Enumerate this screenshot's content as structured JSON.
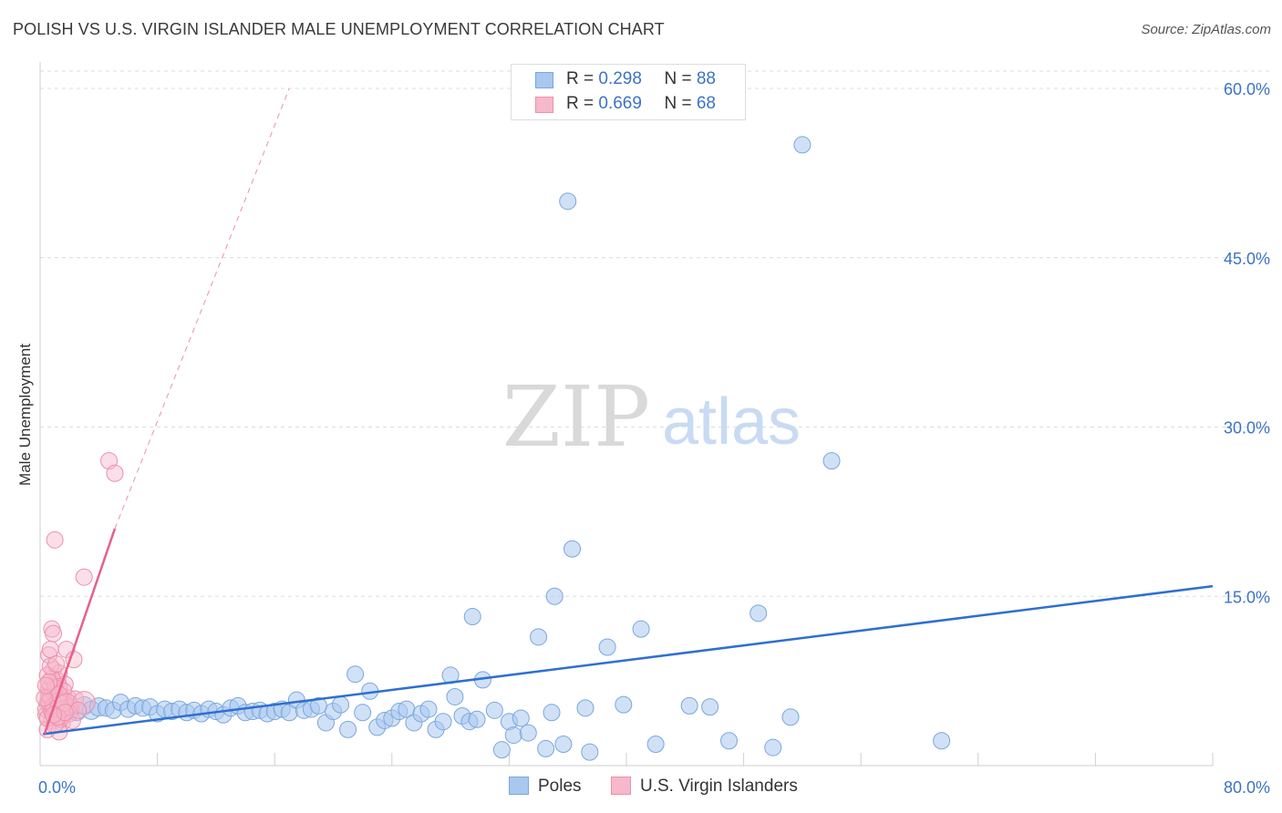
{
  "title": "POLISH VS U.S. VIRGIN ISLANDER MALE UNEMPLOYMENT CORRELATION CHART",
  "source": "Source: ZipAtlas.com",
  "colors": {
    "blue_fill": "#a9c8ef",
    "blue_stroke": "#7aa6df",
    "blue_line": "#2f6fd0",
    "pink_fill": "#f7b8cb",
    "pink_stroke": "#ee8fab",
    "pink_line": "#e7608c",
    "axis_text": "#3b73c8",
    "grid": "#dcdcdc"
  },
  "legend": {
    "rows": [
      {
        "r_label": "R = ",
        "r_value": "0.298",
        "n_label": "N = ",
        "n_value": "88"
      },
      {
        "r_label": "R = ",
        "r_value": "0.669",
        "n_label": "N = ",
        "n_value": "68"
      }
    ]
  },
  "bottom_legend": [
    "Poles",
    "U.S. Virgin Islanders"
  ],
  "chart_data": {
    "type": "scatter",
    "title": "POLISH VS U.S. VIRGIN ISLANDER MALE UNEMPLOYMENT CORRELATION CHART",
    "xlabel": "",
    "ylabel": "Male Unemployment",
    "xlim": [
      0,
      80
    ],
    "ylim": [
      0,
      62
    ],
    "x_tick_labels": [
      "0.0%",
      "80.0%"
    ],
    "y_ticks": [
      15,
      30,
      45,
      60
    ],
    "y_tick_labels": [
      "15.0%",
      "30.0%",
      "45.0%",
      "60.0%"
    ],
    "grid": true,
    "watermark": {
      "zip": "ZIP",
      "atlas": "atlas"
    },
    "series": [
      {
        "name": "Poles",
        "r": 0.298,
        "n": 88,
        "trendline": {
          "x": [
            0.2,
            80
          ],
          "y": [
            2.8,
            15.9
          ]
        },
        "points": [
          [
            1.0,
            5.2,
            14
          ],
          [
            1.5,
            5.6,
            12
          ],
          [
            2.0,
            5.0,
            11
          ],
          [
            2.5,
            4.8,
            10
          ],
          [
            3.0,
            5.3,
            10
          ],
          [
            3.5,
            4.9,
            10
          ],
          [
            4.0,
            5.2,
            10
          ],
          [
            4.5,
            5.1,
            9
          ],
          [
            5.0,
            4.9,
            9
          ],
          [
            5.5,
            5.6,
            9
          ],
          [
            6.0,
            5.0,
            9
          ],
          [
            6.5,
            5.3,
            9
          ],
          [
            7.0,
            5.1,
            9
          ],
          [
            7.5,
            5.2,
            9
          ],
          [
            8.0,
            4.6,
            9
          ],
          [
            8.5,
            5.0,
            9
          ],
          [
            9.0,
            4.8,
            9
          ],
          [
            9.5,
            5.0,
            9
          ],
          [
            10.0,
            4.7,
            9
          ],
          [
            10.5,
            4.9,
            9
          ],
          [
            11.0,
            4.6,
            9
          ],
          [
            11.5,
            5.0,
            9
          ],
          [
            12.0,
            4.8,
            9
          ],
          [
            12.5,
            4.5,
            9
          ],
          [
            13.0,
            5.1,
            9
          ],
          [
            13.5,
            5.3,
            9
          ],
          [
            14.0,
            4.7,
            9
          ],
          [
            14.5,
            4.8,
            9
          ],
          [
            15.0,
            4.9,
            9
          ],
          [
            15.5,
            4.6,
            9
          ],
          [
            16.0,
            4.8,
            9
          ],
          [
            16.5,
            5.0,
            9
          ],
          [
            17.0,
            4.7,
            9
          ],
          [
            17.5,
            5.8,
            9
          ],
          [
            18.0,
            4.9,
            9
          ],
          [
            18.5,
            5.0,
            9
          ],
          [
            19.0,
            5.3,
            9
          ],
          [
            19.5,
            3.8,
            9
          ],
          [
            20.0,
            4.8,
            9
          ],
          [
            20.5,
            5.4,
            9
          ],
          [
            21.0,
            3.2,
            9
          ],
          [
            21.5,
            8.1,
            9
          ],
          [
            22.0,
            4.7,
            9
          ],
          [
            22.5,
            6.6,
            9
          ],
          [
            23.0,
            3.4,
            9
          ],
          [
            23.5,
            4.0,
            9
          ],
          [
            24.0,
            4.2,
            9
          ],
          [
            24.5,
            4.8,
            9
          ],
          [
            25.0,
            5.0,
            9
          ],
          [
            25.5,
            3.8,
            9
          ],
          [
            26.0,
            4.6,
            9
          ],
          [
            26.5,
            5.0,
            9
          ],
          [
            27.0,
            3.2,
            9
          ],
          [
            27.5,
            3.9,
            9
          ],
          [
            28.0,
            8.0,
            9
          ],
          [
            28.3,
            6.1,
            9
          ],
          [
            28.8,
            4.4,
            9
          ],
          [
            29.3,
            3.9,
            9
          ],
          [
            29.8,
            4.1,
            9
          ],
          [
            29.5,
            13.2,
            9
          ],
          [
            30.2,
            7.6,
            9
          ],
          [
            31.0,
            4.9,
            9
          ],
          [
            31.5,
            1.4,
            9
          ],
          [
            32.0,
            3.9,
            9
          ],
          [
            32.3,
            2.7,
            9
          ],
          [
            32.8,
            4.2,
            9
          ],
          [
            33.3,
            2.9,
            9
          ],
          [
            34.0,
            11.4,
            9
          ],
          [
            34.5,
            1.5,
            9
          ],
          [
            34.9,
            4.7,
            9
          ],
          [
            35.1,
            15.0,
            9
          ],
          [
            35.7,
            1.9,
            9
          ],
          [
            36.0,
            50.0,
            9
          ],
          [
            36.3,
            19.2,
            9
          ],
          [
            37.2,
            5.1,
            9
          ],
          [
            37.5,
            1.2,
            9
          ],
          [
            38.7,
            10.5,
            9
          ],
          [
            39.8,
            5.4,
            9
          ],
          [
            41.0,
            12.1,
            9
          ],
          [
            42.0,
            1.9,
            9
          ],
          [
            44.3,
            5.3,
            9
          ],
          [
            45.7,
            5.2,
            9
          ],
          [
            47.0,
            2.2,
            9
          ],
          [
            49.0,
            13.5,
            9
          ],
          [
            50.0,
            1.6,
            9
          ],
          [
            51.2,
            4.3,
            9
          ],
          [
            52.0,
            55.0,
            9
          ],
          [
            54.0,
            27.0,
            9
          ],
          [
            61.5,
            2.2,
            9
          ]
        ]
      },
      {
        "name": "U.S. Virgin Islanders",
        "r": 0.669,
        "n": 68,
        "trendline": {
          "x": [
            0.3,
            5.1
          ],
          "y": [
            2.8,
            21.0
          ]
        },
        "trendline_extension": {
          "x": [
            5.1,
            17.0
          ],
          "y": [
            21.0,
            60.0
          ]
        },
        "points": [
          [
            0.4,
            4.5,
            9
          ],
          [
            0.5,
            5.5,
            9
          ],
          [
            0.6,
            6.2,
            9
          ],
          [
            0.7,
            7.0,
            9
          ],
          [
            0.8,
            4.0,
            9
          ],
          [
            0.9,
            8.5,
            9
          ],
          [
            0.5,
            3.2,
            9
          ],
          [
            0.6,
            9.8,
            9
          ],
          [
            0.7,
            10.3,
            9
          ],
          [
            0.8,
            12.1,
            9
          ],
          [
            0.9,
            11.7,
            9
          ],
          [
            1.0,
            5.0,
            9
          ],
          [
            1.1,
            6.5,
            9
          ],
          [
            1.2,
            7.5,
            9
          ],
          [
            1.3,
            8.2,
            9
          ],
          [
            1.4,
            4.2,
            9
          ],
          [
            1.5,
            3.8,
            9
          ],
          [
            1.6,
            5.8,
            9
          ],
          [
            1.7,
            7.2,
            9
          ],
          [
            1.8,
            10.3,
            9
          ],
          [
            1.3,
            3.0,
            9
          ],
          [
            1.0,
            20.0,
            9
          ],
          [
            1.9,
            6.0,
            9
          ],
          [
            2.0,
            4.6,
            9
          ],
          [
            2.1,
            5.2,
            9
          ],
          [
            2.3,
            9.4,
            9
          ],
          [
            0.6,
            6.8,
            9
          ],
          [
            0.7,
            5.9,
            9
          ],
          [
            0.8,
            7.7,
            9
          ],
          [
            0.9,
            6.4,
            9
          ],
          [
            1.0,
            4.9,
            9
          ],
          [
            1.1,
            5.4,
            9
          ],
          [
            1.2,
            6.0,
            9
          ],
          [
            1.3,
            7.0,
            9
          ],
          [
            1.4,
            5.1,
            9
          ],
          [
            1.5,
            4.4,
            9
          ],
          [
            1.6,
            6.6,
            9
          ],
          [
            0.4,
            5.0,
            9
          ],
          [
            0.5,
            4.2,
            9
          ],
          [
            0.6,
            5.6,
            9
          ],
          [
            0.7,
            6.1,
            9
          ],
          [
            0.8,
            4.8,
            9
          ],
          [
            0.9,
            5.3,
            9
          ],
          [
            1.0,
            6.9,
            9
          ],
          [
            1.1,
            4.6,
            9
          ],
          [
            1.2,
            5.7,
            9
          ],
          [
            1.3,
            6.3,
            9
          ],
          [
            1.4,
            4.1,
            9
          ],
          [
            1.5,
            5.0,
            9
          ],
          [
            1.6,
            5.5,
            9
          ],
          [
            0.5,
            8.0,
            9
          ],
          [
            0.6,
            7.4,
            9
          ],
          [
            0.7,
            8.8,
            9
          ],
          [
            2.2,
            4.0,
            9
          ],
          [
            2.4,
            5.9,
            9
          ],
          [
            1.8,
            5.4,
            12
          ],
          [
            3.0,
            5.6,
            12
          ],
          [
            0.3,
            6.0,
            9
          ],
          [
            0.4,
            7.1,
            9
          ],
          [
            1.0,
            3.6,
            9
          ],
          [
            1.2,
            4.3,
            9
          ],
          [
            2.6,
            4.9,
            9
          ],
          [
            1.7,
            4.7,
            9
          ],
          [
            0.9,
            4.5,
            9
          ],
          [
            3.0,
            16.7,
            9
          ],
          [
            4.7,
            27.0,
            9
          ],
          [
            5.1,
            25.9,
            9
          ],
          [
            1.1,
            9.0,
            9
          ]
        ]
      }
    ]
  }
}
